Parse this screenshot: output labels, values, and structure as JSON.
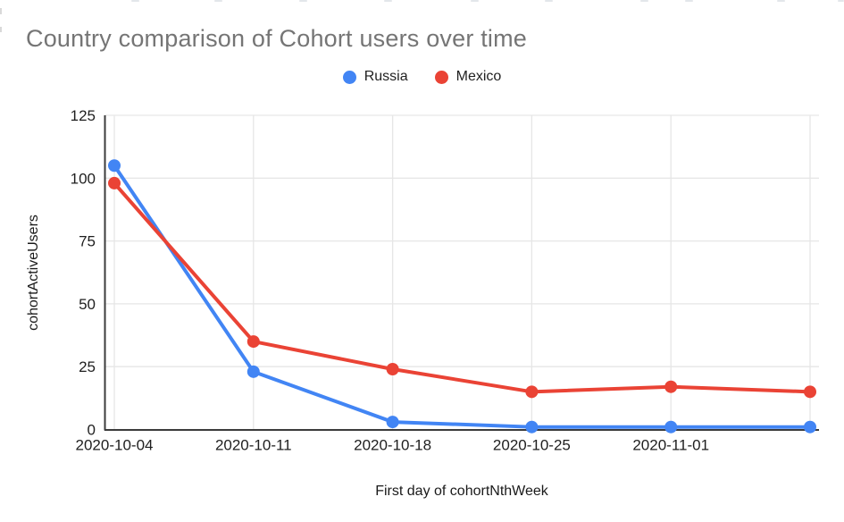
{
  "chart": {
    "title": "Country comparison of Cohort users over time",
    "title_color": "#757575",
    "legend": [
      {
        "label": "Russia",
        "color": "#4285F4"
      },
      {
        "label": "Mexico",
        "color": "#EA4335"
      }
    ]
  },
  "chart_data": {
    "type": "line",
    "title": "Country comparison of Cohort users over time",
    "xlabel": "First day of cohortNthWeek",
    "ylabel": "cohortActiveUsers",
    "categories": [
      "2020-10-04",
      "2020-10-11",
      "2020-10-18",
      "2020-10-25",
      "2020-11-01",
      ""
    ],
    "series": [
      {
        "name": "Russia",
        "color": "#4285F4",
        "values": [
          105,
          23,
          3,
          1,
          1,
          1
        ]
      },
      {
        "name": "Mexico",
        "color": "#EA4335",
        "values": [
          98,
          35,
          24,
          15,
          17,
          15
        ]
      }
    ],
    "ylim": [
      0,
      125
    ],
    "yticks": [
      0,
      25,
      50,
      75,
      100,
      125
    ],
    "grid": true,
    "legend_position": "top",
    "styles": {
      "gridline_color": "#e6e6e6",
      "axis_line_color": "#3b3b3b",
      "tick_label_color": "#1f1f1f",
      "line_width": 4,
      "marker_radius": 7
    }
  }
}
